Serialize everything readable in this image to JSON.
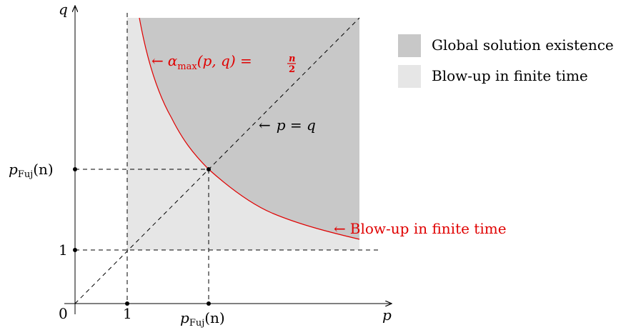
{
  "colors": {
    "global_region": "#c8c8c8",
    "blowup_region": "#e6e6e6",
    "curve": "#e00000",
    "axes": "#000000"
  },
  "axes": {
    "x_label": "p",
    "y_label": "q",
    "origin_label": "0",
    "x_tick_one": "1",
    "y_tick_one": "1",
    "x_tick_fuj_base": "p",
    "x_tick_fuj_sub": "Fuj",
    "x_tick_fuj_arg": "(n)",
    "y_tick_fuj_base": "p",
    "y_tick_fuj_sub": "Fuj",
    "y_tick_fuj_arg": "(n)"
  },
  "annotations": {
    "curve_arrow": "←",
    "curve_alpha": "α",
    "curve_sub": "max",
    "curve_args": "(p, q) =",
    "curve_frac_num": "n",
    "curve_frac_den": "2",
    "diag_arrow": "←",
    "diag_label": "p = q",
    "blowup_arrow": "←",
    "blowup_label": "Blow-up in finite time"
  },
  "legend": {
    "global_label": "Global solution existence",
    "blowup_label": "Blow-up in finite time"
  }
}
